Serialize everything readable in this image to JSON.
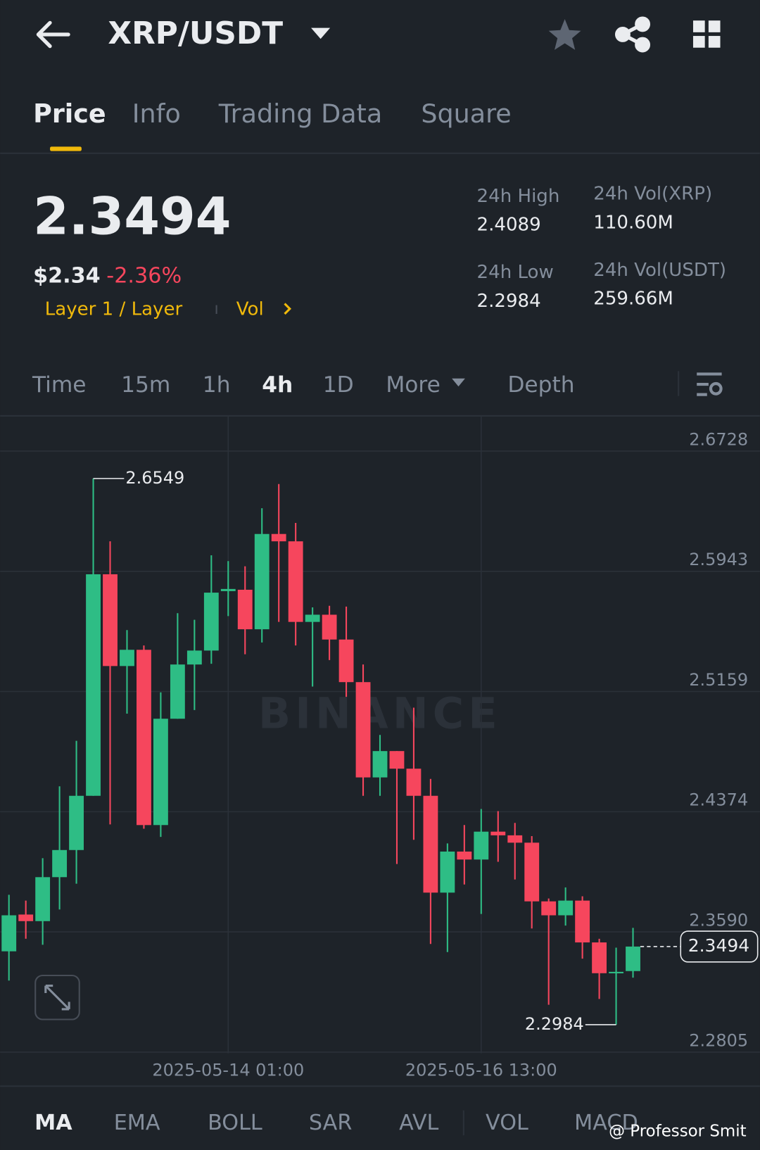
{
  "header": {
    "title": "XRP/USDT"
  },
  "tabs": [
    "Price",
    "Info",
    "Trading Data",
    "Square"
  ],
  "ticker": {
    "price": "2.3494",
    "fiat": "$2.34",
    "change": "-2.36%",
    "tag": "Layer 1 / Layer",
    "vol": "Vol"
  },
  "stats": [
    {
      "label": "24h High",
      "value": "2.4089"
    },
    {
      "label": "24h Vol(XRP)",
      "value": "110.60M"
    },
    {
      "label": "24h Low",
      "value": "2.2984"
    },
    {
      "label": "24h Vol(USDT)",
      "value": "259.66M"
    }
  ],
  "intervals": [
    "Time",
    "15m",
    "1h",
    "4h",
    "1D",
    "More",
    "Depth"
  ],
  "indicators": [
    "MA",
    "EMA",
    "BOLL",
    "SAR",
    "AVL",
    "VOL",
    "MACD"
  ],
  "watermark": "BINANCE",
  "credit": "@ Professor Smit",
  "chart_data": {
    "type": "candlestick",
    "categories": [
      null,
      null,
      null,
      null,
      null,
      null,
      null,
      null,
      null,
      null,
      null,
      null,
      null,
      "2025-05-14 01:00",
      null,
      null,
      null,
      null,
      null,
      null,
      null,
      null,
      null,
      null,
      null,
      null,
      null,
      null,
      "2025-05-16 13:00",
      null,
      null,
      null,
      null,
      null,
      null,
      null,
      null,
      null
    ],
    "open": [
      2.3463,
      2.3703,
      2.366,
      2.3947,
      2.4124,
      2.4478,
      2.5924,
      2.5325,
      2.5431,
      2.4287,
      2.4981,
      2.5335,
      2.5426,
      2.5814,
      2.5823,
      2.5565,
      2.6187,
      2.6139,
      2.5613,
      2.566,
      2.5498,
      2.522,
      2.4598,
      2.477,
      2.4655,
      2.4478,
      2.3846,
      2.4114,
      2.4062,
      2.4244,
      2.422,
      2.4172,
      2.3789,
      2.3698,
      2.3794,
      2.3521,
      2.332,
      2.3334
    ],
    "high": [
      2.3832,
      2.3794,
      2.4071,
      2.454,
      2.4837,
      2.6549,
      2.6139,
      2.556,
      2.5459,
      2.5153,
      2.567,
      2.5627,
      2.6048,
      2.601,
      2.5976,
      2.6355,
      2.6513,
      2.6259,
      2.5708,
      2.5718,
      2.5713,
      2.5335,
      2.4875,
      2.477,
      2.5053,
      2.4588,
      2.4167,
      2.4287,
      2.4392,
      2.4378,
      2.4301,
      2.4215,
      2.3808,
      2.388,
      2.3822,
      2.3545,
      2.3487,
      2.3616
    ],
    "low": [
      2.3272,
      2.3545,
      2.3506,
      2.3736,
      2.3904,
      2.4478,
      2.4291,
      2.5014,
      2.4263,
      2.421,
      2.4981,
      2.5038,
      2.534,
      2.5651,
      2.5402,
      2.5479,
      2.5613,
      2.5459,
      2.5191,
      2.5364,
      2.5124,
      2.4478,
      2.4478,
      2.4033,
      2.4191,
      2.3511,
      2.3458,
      2.3899,
      2.3707,
      2.4047,
      2.3932,
      2.3612,
      2.3114,
      2.3631,
      2.3415,
      2.3152,
      2.2984,
      2.3291
    ],
    "close": [
      2.3698,
      2.366,
      2.3947,
      2.4124,
      2.4478,
      2.5924,
      2.5325,
      2.5431,
      2.4287,
      2.4981,
      2.5335,
      2.5426,
      2.5804,
      2.5828,
      2.5565,
      2.6187,
      2.6139,
      2.5613,
      2.566,
      2.5498,
      2.522,
      2.4598,
      2.477,
      2.4655,
      2.4478,
      2.3846,
      2.4114,
      2.4062,
      2.4244,
      2.422,
      2.4172,
      2.3789,
      2.3698,
      2.3794,
      2.3521,
      2.332,
      2.3329,
      2.3494
    ],
    "up_color": "#2ebd85",
    "down_color": "#f6465d",
    "ylim": [
      2.2798,
      2.6958
    ],
    "yticks": [
      2.2805,
      {
        "value": 2.359,
        "label": "2.3590"
      },
      2.4374,
      2.5159,
      2.5943,
      2.6728
    ],
    "grid": true
  }
}
